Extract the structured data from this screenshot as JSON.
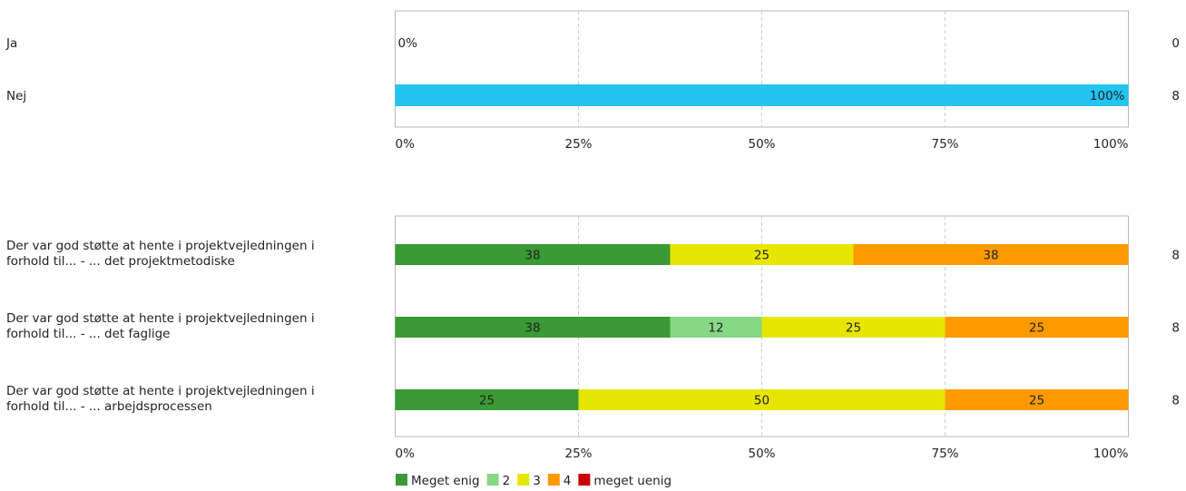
{
  "chart_data": [
    {
      "type": "bar",
      "orientation": "horizontal",
      "value_format": "percent",
      "xlim": [
        0,
        100
      ],
      "ticks": [
        "0%",
        "25%",
        "50%",
        "75%",
        "100%"
      ],
      "grid": true,
      "categories": [
        "Ja",
        "Nej"
      ],
      "counts": [
        "0",
        "8"
      ],
      "series": [
        {
          "values": [
            0,
            100
          ],
          "labels": [
            "0%",
            "100%"
          ],
          "color": "#22c4f0"
        }
      ]
    },
    {
      "type": "bar",
      "orientation": "horizontal",
      "stacked": true,
      "xlim": [
        0,
        100
      ],
      "ticks": [
        "0%",
        "25%",
        "50%",
        "75%",
        "100%"
      ],
      "grid": true,
      "legend_position": "bottom",
      "categories": [
        [
          "Der var god støtte at hente i projektvejledningen i",
          "forhold til... - ... det projektmetodiske"
        ],
        [
          "Der var god støtte at hente i projektvejledningen i",
          "forhold til... - ... det faglige"
        ],
        [
          "Der var god støtte at hente i projektvejledningen i",
          "forhold til... - ... arbejdsprocessen"
        ]
      ],
      "counts": [
        "8",
        "8",
        "8"
      ],
      "series": [
        {
          "name": "Meget enig",
          "color": "#3a9a35",
          "values": [
            37.5,
            37.5,
            25
          ],
          "labels": [
            "38",
            "38",
            "25"
          ]
        },
        {
          "name": "2",
          "color": "#86d884",
          "values": [
            0,
            12.5,
            0
          ],
          "labels": [
            "",
            "12",
            ""
          ]
        },
        {
          "name": "3",
          "color": "#e6e600",
          "values": [
            25,
            25,
            50
          ],
          "labels": [
            "25",
            "25",
            "50"
          ]
        },
        {
          "name": "4",
          "color": "#ff9900",
          "values": [
            37.5,
            25,
            25
          ],
          "labels": [
            "38",
            "25",
            "25"
          ]
        },
        {
          "name": "meget uenig",
          "color": "#cc0000",
          "values": [
            0,
            0,
            0
          ],
          "labels": [
            "",
            "",
            ""
          ]
        }
      ]
    }
  ]
}
